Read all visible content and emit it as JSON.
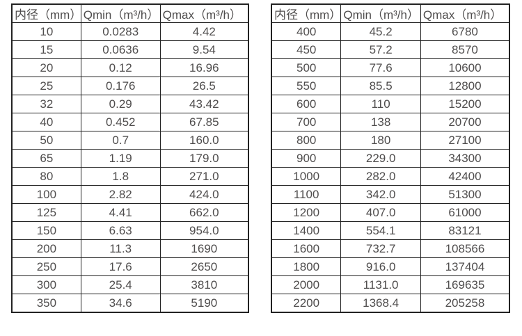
{
  "page": {
    "background_color": "#ffffff",
    "text_color": "#4f4d4d",
    "border_color": "#222222"
  },
  "tables": {
    "left": {
      "name": "flow-spec-table-small-diameters",
      "headers": [
        "内径（mm）",
        "Qmin（m³/h）",
        "Qmax（m³/h）"
      ],
      "rows": [
        [
          "10",
          "0.0283",
          "4.42"
        ],
        [
          "15",
          "0.0636",
          "9.54"
        ],
        [
          "20",
          "0.12",
          "16.96"
        ],
        [
          "25",
          "0.176",
          "26.5"
        ],
        [
          "32",
          "0.29",
          "43.42"
        ],
        [
          "40",
          "0.452",
          "67.85"
        ],
        [
          "50",
          "0.7",
          "160.0"
        ],
        [
          "65",
          "1.19",
          "179.0"
        ],
        [
          "80",
          "1.8",
          "271.0"
        ],
        [
          "100",
          "2.82",
          "424.0"
        ],
        [
          "125",
          "4.41",
          "662.0"
        ],
        [
          "150",
          "6.63",
          "954.0"
        ],
        [
          "200",
          "11.3",
          "1690"
        ],
        [
          "250",
          "17.6",
          "2650"
        ],
        [
          "300",
          "25.4",
          "3810"
        ],
        [
          "350",
          "34.6",
          "5190"
        ]
      ]
    },
    "right": {
      "name": "flow-spec-table-large-diameters",
      "headers": [
        "内径（mm）",
        "Qmin（m³/h）",
        "Qmax（m³/h）"
      ],
      "rows": [
        [
          "400",
          "45.2",
          "6780"
        ],
        [
          "450",
          "57.2",
          "8570"
        ],
        [
          "500",
          "77.6",
          "10600"
        ],
        [
          "550",
          "85.5",
          "12800"
        ],
        [
          "600",
          "110",
          "15200"
        ],
        [
          "700",
          "138",
          "20700"
        ],
        [
          "800",
          "180",
          "27100"
        ],
        [
          "900",
          "229.0",
          "34300"
        ],
        [
          "1000",
          "282.0",
          "42400"
        ],
        [
          "1100",
          "342.0",
          "51300"
        ],
        [
          "1200",
          "407.0",
          "61000"
        ],
        [
          "1400",
          "554.1",
          "83121"
        ],
        [
          "1600",
          "732.7",
          "108566"
        ],
        [
          "1800",
          "916.0",
          "137404"
        ],
        [
          "2000",
          "1131.0",
          "169635"
        ],
        [
          "2200",
          "1368.4",
          "205258"
        ]
      ]
    }
  }
}
